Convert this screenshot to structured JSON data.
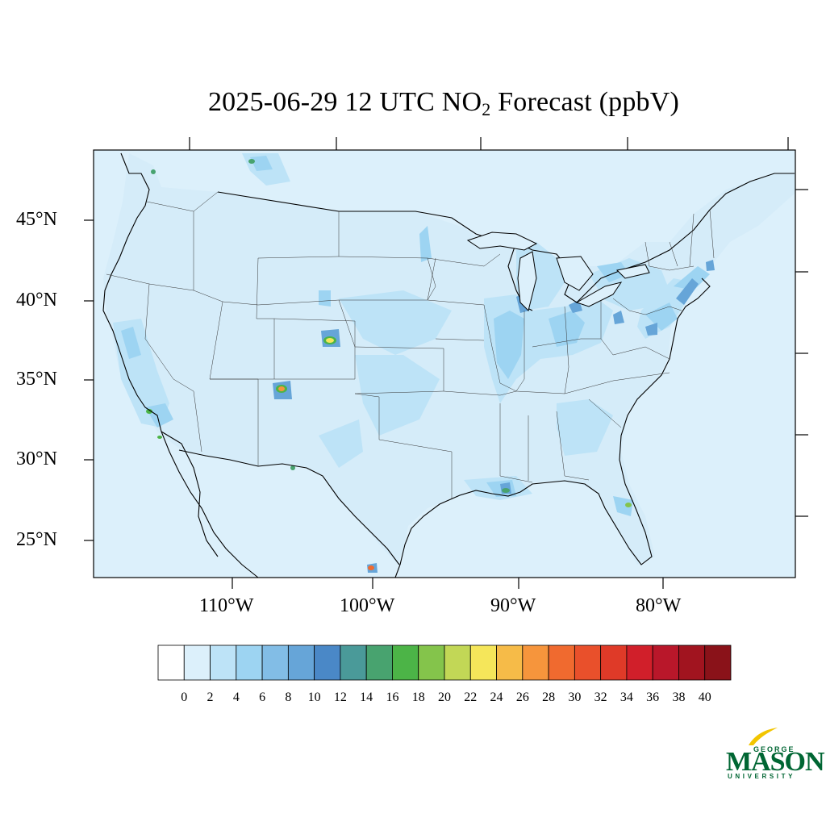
{
  "title": {
    "prefix": "2025-06-29 12 UTC NO",
    "subscript": "2",
    "suffix": " Forecast (ppbV)"
  },
  "axes": {
    "lat_labels": [
      "45°N",
      "40°N",
      "35°N",
      "30°N",
      "25°N"
    ],
    "lon_labels": [
      "110°W",
      "100°W",
      "90°W",
      "80°W"
    ]
  },
  "colorbar": {
    "labels": [
      "0",
      "2",
      "4",
      "6",
      "8",
      "10",
      "12",
      "14",
      "16",
      "18",
      "20",
      "22",
      "24",
      "26",
      "28",
      "30",
      "32",
      "34",
      "36",
      "38",
      "40"
    ],
    "colors": [
      "#ffffff",
      "#dcf0fb",
      "#bde3f7",
      "#9dd4f2",
      "#82bde6",
      "#66a5d8",
      "#4a88c7",
      "#4a9a99",
      "#48a36f",
      "#4cb447",
      "#84c44b",
      "#c2d756",
      "#f5e65a",
      "#f6bb48",
      "#f6953c",
      "#f06a2f",
      "#e9502b",
      "#df3a28",
      "#d11f2a",
      "#b9172a",
      "#a1141f",
      "#8a1219"
    ]
  },
  "logo": {
    "line1": "GEORGE",
    "line2": "MASON",
    "line3": "UNIVERSITY",
    "color": "#006633",
    "accent": "#f2c500"
  }
}
